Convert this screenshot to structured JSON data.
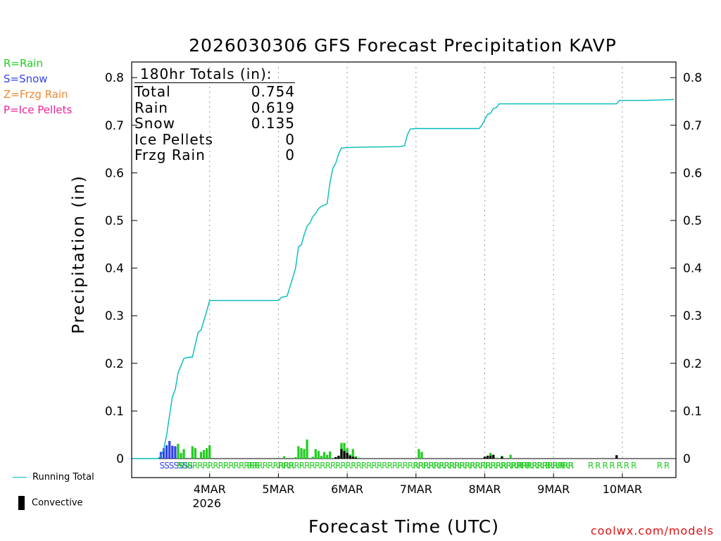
{
  "title": "2026030306 GFS Forecast Precipitation KAVP",
  "legend_types": [
    {
      "label": "R=Rain",
      "color": "#22cc22"
    },
    {
      "label": "S=Snow",
      "color": "#3344ee"
    },
    {
      "label": "Z=Frzg Rain",
      "color": "#ee8833"
    },
    {
      "label": "P=Ice Pellets",
      "color": "#ee2299"
    }
  ],
  "legend_bottom": {
    "running_total": "Running Total",
    "convective": "Convective",
    "running_color": "#00bbbb"
  },
  "totals": {
    "header": "180hr Totals (in):",
    "rows": [
      {
        "label": "Total",
        "value": "0.754"
      },
      {
        "label": "Rain",
        "value": "0.619"
      },
      {
        "label": "Snow",
        "value": "0.135"
      },
      {
        "label": "Ice Pellets",
        "value": "0"
      },
      {
        "label": "Frzg Rain",
        "value": "0"
      }
    ]
  },
  "credit": "coolwx.com/models",
  "chart_data": {
    "type": "bar",
    "title": "2026030306 GFS Forecast Precipitation KAVP",
    "xlabel": "Forecast Time (UTC)",
    "ylabel": "Precipitation (in)",
    "ylim": [
      0,
      0.82
    ],
    "xlim_hours": [
      -9.2,
      180.7
    ],
    "y_ticks": [
      "0",
      "0.1",
      "0.2",
      "0.3",
      "0.4",
      "0.5",
      "0.6",
      "0.7",
      "0.8"
    ],
    "x_ticks": [
      {
        "hour": 18,
        "label": "4MAR",
        "sub": "2026"
      },
      {
        "hour": 42,
        "label": "5MAR",
        "sub": ""
      },
      {
        "hour": 66,
        "label": "6MAR",
        "sub": ""
      },
      {
        "hour": 90,
        "label": "7MAR",
        "sub": ""
      },
      {
        "hour": 114,
        "label": "8MAR",
        "sub": ""
      },
      {
        "hour": 138,
        "label": "9MAR",
        "sub": ""
      },
      {
        "hour": 162,
        "label": "10MAR",
        "sub": ""
      }
    ],
    "running_total": {
      "name": "Running Total",
      "points": [
        [
          -9,
          0
        ],
        [
          0,
          0
        ],
        [
          1,
          0.005
        ],
        [
          2,
          0.02
        ],
        [
          3,
          0.05
        ],
        [
          4,
          0.09
        ],
        [
          5,
          0.13
        ],
        [
          6,
          0.145
        ],
        [
          7,
          0.18
        ],
        [
          8,
          0.195
        ],
        [
          9,
          0.21
        ],
        [
          10,
          0.212
        ],
        [
          11,
          0.213
        ],
        [
          12,
          0.213
        ],
        [
          13,
          0.24
        ],
        [
          14,
          0.265
        ],
        [
          15,
          0.27
        ],
        [
          16,
          0.29
        ],
        [
          17,
          0.31
        ],
        [
          18,
          0.332
        ],
        [
          20,
          0.332
        ],
        [
          30,
          0.332
        ],
        [
          42,
          0.332
        ],
        [
          43,
          0.338
        ],
        [
          44,
          0.34
        ],
        [
          45,
          0.341
        ],
        [
          46,
          0.36
        ],
        [
          47,
          0.38
        ],
        [
          48,
          0.4
        ],
        [
          49,
          0.445
        ],
        [
          50,
          0.449
        ],
        [
          51,
          0.47
        ],
        [
          52,
          0.488
        ],
        [
          53,
          0.495
        ],
        [
          54,
          0.508
        ],
        [
          55,
          0.515
        ],
        [
          56,
          0.525
        ],
        [
          57,
          0.53
        ],
        [
          58,
          0.532
        ],
        [
          59,
          0.535
        ],
        [
          60,
          0.58
        ],
        [
          61,
          0.61
        ],
        [
          62,
          0.62
        ],
        [
          63,
          0.64
        ],
        [
          64,
          0.652
        ],
        [
          66,
          0.653
        ],
        [
          70,
          0.654
        ],
        [
          84,
          0.655
        ],
        [
          86,
          0.657
        ],
        [
          87,
          0.68
        ],
        [
          88,
          0.692
        ],
        [
          90,
          0.693
        ],
        [
          100,
          0.693
        ],
        [
          112,
          0.693
        ],
        [
          113,
          0.7
        ],
        [
          114,
          0.712
        ],
        [
          115,
          0.723
        ],
        [
          116,
          0.725
        ],
        [
          117,
          0.735
        ],
        [
          118,
          0.737
        ],
        [
          119,
          0.745
        ],
        [
          120,
          0.745
        ],
        [
          140,
          0.745
        ],
        [
          160,
          0.745
        ],
        [
          161,
          0.752
        ],
        [
          170,
          0.752
        ],
        [
          180,
          0.754
        ]
      ]
    },
    "bars": [
      {
        "hour": 1,
        "total": 0.014,
        "conv": 0,
        "type": "S"
      },
      {
        "hour": 2,
        "total": 0.022,
        "conv": 0,
        "type": "S"
      },
      {
        "hour": 3,
        "total": 0.028,
        "conv": 0,
        "type": "S"
      },
      {
        "hour": 4,
        "total": 0.037,
        "conv": 0,
        "type": "S"
      },
      {
        "hour": 5,
        "total": 0.027,
        "conv": 0,
        "type": "S"
      },
      {
        "hour": 6,
        "total": 0.026,
        "conv": 0,
        "type": "S"
      },
      {
        "hour": 7,
        "total": 0.031,
        "conv": 0,
        "type": "R"
      },
      {
        "hour": 8,
        "total": 0.012,
        "conv": 0,
        "type": "R"
      },
      {
        "hour": 9,
        "total": 0.02,
        "conv": 0,
        "type": "R"
      },
      {
        "hour": 12,
        "total": 0.026,
        "conv": 0,
        "type": "R"
      },
      {
        "hour": 13,
        "total": 0.022,
        "conv": 0,
        "type": "R"
      },
      {
        "hour": 15,
        "total": 0.014,
        "conv": 0,
        "type": "R"
      },
      {
        "hour": 16,
        "total": 0.018,
        "conv": 0,
        "type": "R"
      },
      {
        "hour": 17,
        "total": 0.022,
        "conv": 0,
        "type": "R"
      },
      {
        "hour": 18,
        "total": 0.028,
        "conv": 0,
        "type": "R"
      },
      {
        "hour": 44,
        "total": 0.005,
        "conv": 0,
        "type": "R"
      },
      {
        "hour": 48,
        "total": 0.003,
        "conv": 0,
        "type": "R"
      },
      {
        "hour": 49,
        "total": 0.026,
        "conv": 0,
        "type": "R"
      },
      {
        "hour": 50,
        "total": 0.022,
        "conv": 0,
        "type": "R"
      },
      {
        "hour": 51,
        "total": 0.02,
        "conv": 0,
        "type": "R"
      },
      {
        "hour": 52,
        "total": 0.04,
        "conv": 0,
        "type": "R"
      },
      {
        "hour": 54,
        "total": 0.004,
        "conv": 0,
        "type": "R"
      },
      {
        "hour": 55,
        "total": 0.02,
        "conv": 0,
        "type": "R"
      },
      {
        "hour": 56,
        "total": 0.016,
        "conv": 0,
        "type": "R"
      },
      {
        "hour": 57,
        "total": 0.006,
        "conv": 0,
        "type": "R"
      },
      {
        "hour": 58,
        "total": 0.014,
        "conv": 0,
        "type": "R"
      },
      {
        "hour": 59,
        "total": 0.008,
        "conv": 0,
        "type": "R"
      },
      {
        "hour": 60,
        "total": 0.015,
        "conv": 0,
        "type": "R"
      },
      {
        "hour": 62,
        "total": 0.003,
        "conv": 0.003,
        "type": "R"
      },
      {
        "hour": 63,
        "total": 0.006,
        "conv": 0.006,
        "type": "R"
      },
      {
        "hour": 64,
        "total": 0.033,
        "conv": 0.02,
        "type": "R"
      },
      {
        "hour": 65,
        "total": 0.033,
        "conv": 0.016,
        "type": "R"
      },
      {
        "hour": 66,
        "total": 0.022,
        "conv": 0.012,
        "type": "R"
      },
      {
        "hour": 67,
        "total": 0.009,
        "conv": 0.006,
        "type": "R"
      },
      {
        "hour": 68,
        "total": 0.02,
        "conv": 0.004,
        "type": "R"
      },
      {
        "hour": 69,
        "total": 0.005,
        "conv": 0.002,
        "type": "R"
      },
      {
        "hour": 70,
        "total": 0.002,
        "conv": 0,
        "type": "R"
      },
      {
        "hour": 91,
        "total": 0.02,
        "conv": 0,
        "type": "R"
      },
      {
        "hour": 92,
        "total": 0.014,
        "conv": 0,
        "type": "R"
      },
      {
        "hour": 114,
        "total": 0.004,
        "conv": 0.004,
        "type": "R"
      },
      {
        "hour": 115,
        "total": 0.006,
        "conv": 0.006,
        "type": "R"
      },
      {
        "hour": 116,
        "total": 0.012,
        "conv": 0.006,
        "type": "R"
      },
      {
        "hour": 117,
        "total": 0.008,
        "conv": 0.008,
        "type": "R"
      },
      {
        "hour": 118,
        "total": 0.002,
        "conv": 0,
        "type": "R"
      },
      {
        "hour": 120,
        "total": 0.006,
        "conv": 0.004,
        "type": "R"
      },
      {
        "hour": 123,
        "total": 0.008,
        "conv": 0,
        "type": "R"
      },
      {
        "hour": 160,
        "total": 0.007,
        "conv": 0.007,
        "type": "R"
      }
    ],
    "type_markers": [
      {
        "text": "SSSSSSS",
        "hour": 0.5,
        "type": "S"
      },
      {
        "text": "RRRRRRRRRRRRRRRR",
        "hour": 6.5,
        "type": "R"
      },
      {
        "text": "RRRRRRRRR",
        "hour": 31,
        "type": "R"
      },
      {
        "text": "RRRRRRRRRRRRRRRRRRRRRRRRRRRRRRRRRRRRRRRRRRRRRRRRRRRRRRRRR",
        "hour": 42,
        "type": "R"
      },
      {
        "text": "RRRRRRRRRRRRRRRRRRRRRRRRRRRRRRR",
        "hour": 89,
        "type": "R"
      },
      {
        "text": "R R R",
        "hour": 123,
        "type": "R"
      },
      {
        "text": "R R R",
        "hour": 135,
        "type": "R"
      },
      {
        "text": "R R R R R R R",
        "hour": 150,
        "type": "R"
      },
      {
        "text": "R R",
        "hour": 174,
        "type": "R"
      }
    ]
  }
}
